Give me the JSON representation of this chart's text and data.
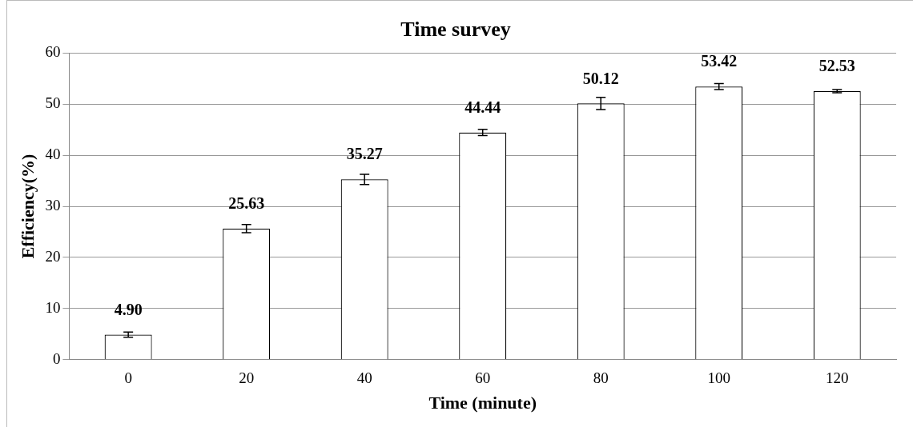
{
  "chart_data": {
    "type": "bar",
    "title": "Time survey",
    "xlabel": "Time (minute)",
    "ylabel": "Efficiency(%)",
    "categories": [
      "0",
      "20",
      "40",
      "60",
      "80",
      "100",
      "120"
    ],
    "values": [
      4.9,
      25.63,
      35.27,
      44.44,
      50.12,
      53.42,
      52.53
    ],
    "errors": [
      0.5,
      0.8,
      1.0,
      0.6,
      1.2,
      0.6,
      0.3
    ],
    "color": "#ffffff",
    "ylim": [
      0,
      60
    ],
    "yticks": [
      0,
      10,
      20,
      30,
      40,
      50,
      60
    ],
    "value_labels": [
      "4.90",
      "25.63",
      "35.27",
      "44.44",
      "50.12",
      "53.42",
      "52.53"
    ],
    "grid": "y",
    "legend": false
  }
}
